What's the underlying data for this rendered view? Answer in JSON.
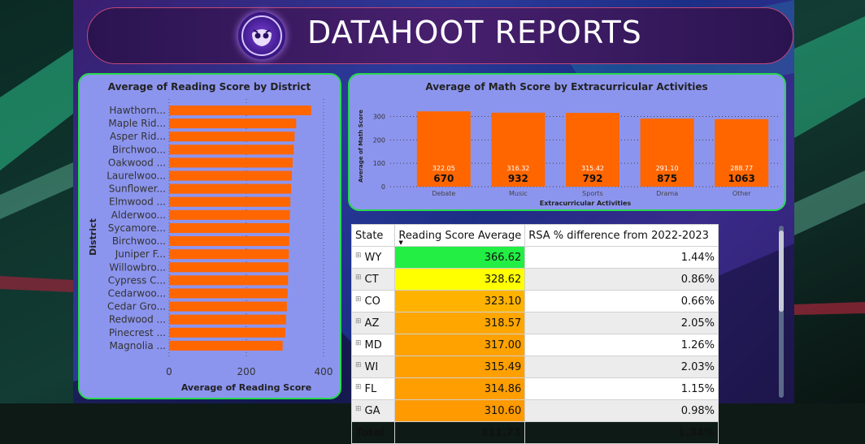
{
  "banner": {
    "title": "DATAHOOT REPORTS"
  },
  "colors": {
    "bar": "#ff6600",
    "panel_border": "#26d84d",
    "panel_bg": "#8c95ee"
  },
  "reading_panel": {
    "title": "Average of Reading Score by District"
  },
  "math_panel": {
    "title": "Average of Math Score by Extracurricular Activities"
  },
  "chart_data": [
    {
      "type": "bar",
      "orientation": "horizontal",
      "title": "Average of Reading Score by District",
      "xlabel": "Average of Reading Score",
      "ylabel": "District",
      "categories": [
        "Hawthorn...",
        "Maple Rid...",
        "Asper Rid...",
        "Birchwoo...",
        "Oakwood ...",
        "Laurelwoo...",
        "Sunflower...",
        "Elmwood ...",
        "Alderwoo...",
        "Sycamore...",
        "Birchwoo...",
        "Juniper F...",
        "Willowbro...",
        "Cypress C...",
        "Cedarwoo...",
        "Cedar Gro...",
        "Redwood ...",
        "Pinecrest ...",
        "Magnolia ..."
      ],
      "values": [
        368,
        329,
        325,
        323,
        320,
        318,
        316,
        314,
        313,
        312,
        311,
        310,
        309,
        308,
        307,
        305,
        303,
        301,
        294
      ],
      "xlim": [
        0,
        400
      ],
      "xticks": [
        "0",
        "200",
        "400"
      ],
      "grid": true
    },
    {
      "type": "bar",
      "title": "Average of Math Score by Extracurricular Activities",
      "xlabel": "Extracurricular Activities",
      "ylabel": "Average of Math Score",
      "categories": [
        "Debate",
        "Music",
        "Sports",
        "Drama",
        "Other"
      ],
      "values": [
        322.05,
        316.32,
        315.42,
        291.1,
        288.77
      ],
      "value_labels": [
        "322.05",
        "316.32",
        "315.42",
        "291.10",
        "288.77"
      ],
      "count_labels": [
        "670",
        "932",
        "792",
        "875",
        "1063"
      ],
      "ylim": [
        0,
        340
      ],
      "yticks": [
        "0",
        "100",
        "200",
        "300"
      ],
      "grid": true
    }
  ],
  "table": {
    "headers": [
      "State",
      "Reading Score Average",
      "RSA % difference from 2022-2023"
    ],
    "rows": [
      {
        "state": "WY",
        "avg": "366.62",
        "diff": "1.44%",
        "color": "#22ee44"
      },
      {
        "state": "CT",
        "avg": "328.62",
        "diff": "0.86%",
        "color": "#ffff00"
      },
      {
        "state": "CO",
        "avg": "323.10",
        "diff": "0.66%",
        "color": "#ffb300"
      },
      {
        "state": "AZ",
        "avg": "318.57",
        "diff": "2.05%",
        "color": "#ffa600"
      },
      {
        "state": "MD",
        "avg": "317.00",
        "diff": "1.26%",
        "color": "#ffa200"
      },
      {
        "state": "WI",
        "avg": "315.49",
        "diff": "2.03%",
        "color": "#ffa000"
      },
      {
        "state": "FL",
        "avg": "314.86",
        "diff": "1.15%",
        "color": "#ff9e00"
      },
      {
        "state": "GA",
        "avg": "310.60",
        "diff": "0.98%",
        "color": "#ff9a00"
      }
    ],
    "total_label": "Total",
    "total_avg": "311.71",
    "total_diff": "1.34%"
  }
}
